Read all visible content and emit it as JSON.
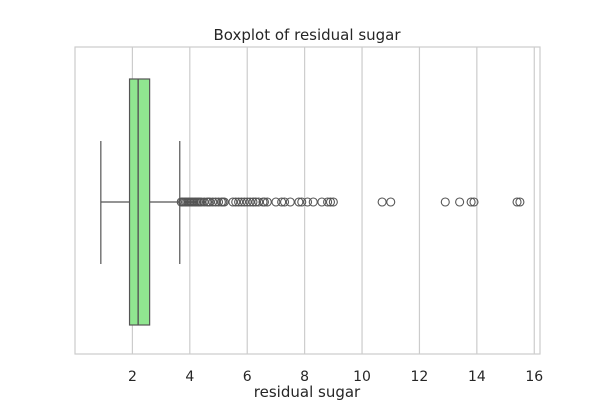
{
  "chart_data": {
    "type": "boxplot",
    "title": "Boxplot of residual sugar",
    "xlabel": "residual sugar",
    "ylabel": "",
    "xlim": [
      0.0,
      16.2
    ],
    "xticks": [
      2,
      4,
      6,
      8,
      10,
      12,
      14,
      16
    ],
    "grid": "x-major",
    "orientation": "horizontal",
    "box": {
      "whisker_low": 0.9,
      "q1": 1.9,
      "median": 2.2,
      "q3": 2.6,
      "whisker_high": 3.65,
      "fill_color": "#90e690",
      "edge_color": "#555555"
    },
    "outliers": [
      3.7,
      3.75,
      3.8,
      3.85,
      3.9,
      3.95,
      4.0,
      4.05,
      4.1,
      4.15,
      4.2,
      4.25,
      4.3,
      4.35,
      4.4,
      4.5,
      4.6,
      4.65,
      4.7,
      4.8,
      4.9,
      5.0,
      5.1,
      5.15,
      5.2,
      5.5,
      5.6,
      5.7,
      5.8,
      5.9,
      6.0,
      6.1,
      6.2,
      6.3,
      6.4,
      6.55,
      6.6,
      6.7,
      7.0,
      7.2,
      7.3,
      7.5,
      7.8,
      7.9,
      8.1,
      8.3,
      8.6,
      8.8,
      8.9,
      9.0,
      10.7,
      11.0,
      12.9,
      13.4,
      13.8,
      13.9,
      15.4,
      15.5
    ]
  }
}
